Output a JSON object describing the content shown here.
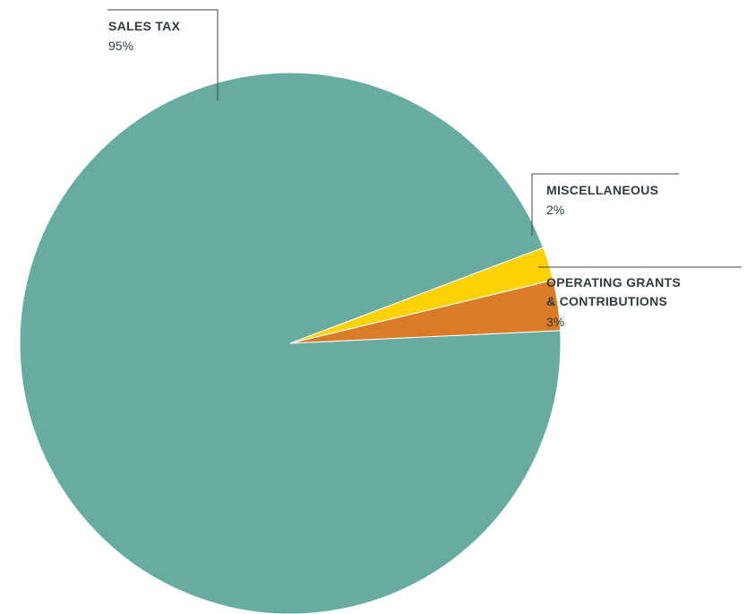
{
  "chart_data": {
    "type": "pie",
    "slices": [
      {
        "label_lines": [
          "SALES TAX"
        ],
        "percent_label": "95%",
        "value": 95,
        "color": "#68aba0"
      },
      {
        "label_lines": [
          "MISCELLANEOUS"
        ],
        "percent_label": "2%",
        "value": 2,
        "color": "#fcd205"
      },
      {
        "label_lines": [
          "OPERATING GRANTS",
          "& CONTRIBUTIONS"
        ],
        "percent_label": "3%",
        "value": 3,
        "color": "#d97b27"
      }
    ]
  }
}
